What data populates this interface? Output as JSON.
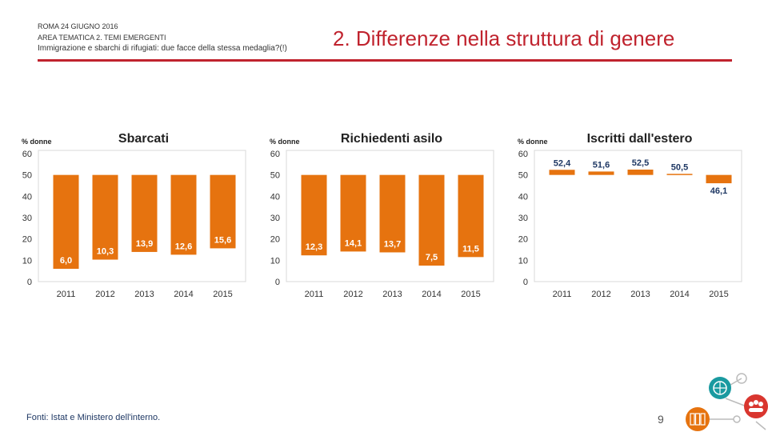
{
  "header": {
    "date": "ROMA 24 GIUGNO 2016",
    "area": "AREA TEMATICA 2. TEMI EMERGENTI",
    "subtitle": "Immigrazione e sbarchi di rifugiati: due facce della stessa medaglia?(!)"
  },
  "slide_title": "2. Differenze nella struttura di genere",
  "chart_data": [
    {
      "type": "bar",
      "title": "Sbarcati",
      "ylabel": "% donne",
      "categories": [
        "2011",
        "2012",
        "2013",
        "2014",
        "2015"
      ],
      "values": [
        6.0,
        10.3,
        13.9,
        12.6,
        15.6
      ],
      "value_labels": [
        "6,0",
        "10,3",
        "13,9",
        "12,6",
        "15,6"
      ],
      "baseline": 50,
      "ylim": [
        0,
        60
      ],
      "yticks": [
        "0",
        "10",
        "20",
        "30",
        "40",
        "50",
        "60"
      ],
      "bar_color": "#e6730f"
    },
    {
      "type": "bar",
      "title": "Richiedenti asilo",
      "ylabel": "% donne",
      "categories": [
        "2011",
        "2012",
        "2013",
        "2014",
        "2015"
      ],
      "values": [
        12.3,
        14.1,
        13.7,
        7.5,
        11.5
      ],
      "value_labels": [
        "12,3",
        "14,1",
        "13,7",
        "7,5",
        "11,5"
      ],
      "baseline": 50,
      "ylim": [
        0,
        60
      ],
      "yticks": [
        "0",
        "10",
        "20",
        "30",
        "40",
        "50",
        "60"
      ],
      "bar_color": "#e6730f"
    },
    {
      "type": "bar",
      "title": "Iscritti dall'estero",
      "ylabel": "% donne",
      "categories": [
        "2011",
        "2012",
        "2013",
        "2014",
        "2015"
      ],
      "values": [
        52.4,
        51.6,
        52.5,
        50.5,
        46.1
      ],
      "value_labels": [
        "52,4",
        "51,6",
        "52,5",
        "50,5",
        "46,1"
      ],
      "baseline": 50,
      "ylim": [
        0,
        60
      ],
      "yticks": [
        "0",
        "10",
        "20",
        "30",
        "40",
        "50",
        "60"
      ],
      "bar_color": "#e6730f"
    }
  ],
  "footer": {
    "source": "Fonti: Istat e Ministero dell'interno.",
    "page_number": "9"
  },
  "colors": {
    "accent": "#c0232e",
    "bar": "#e6730f",
    "value_label": "#ffffff",
    "value_label_outside": "#1f3864",
    "source_text": "#1f3864"
  }
}
